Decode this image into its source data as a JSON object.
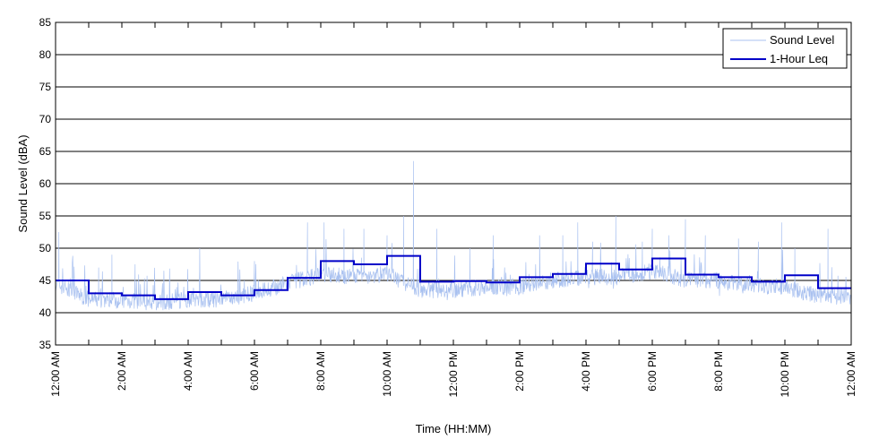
{
  "chart_data": {
    "type": "line",
    "title": "",
    "xlabel": "Time (HH:MM)",
    "ylabel": "Sound Level (dBA)",
    "ylim": [
      35,
      85
    ],
    "xlim": [
      0,
      24
    ],
    "yticks": [
      35,
      40,
      45,
      50,
      55,
      60,
      65,
      70,
      75,
      80,
      85
    ],
    "xtick_hours": [
      0,
      2,
      4,
      6,
      8,
      10,
      12,
      14,
      16,
      18,
      20,
      22,
      24
    ],
    "xtick_labels": [
      "12:00 AM",
      "2:00 AM",
      "4:00 AM",
      "6:00 AM",
      "8:00 AM",
      "10:00 AM",
      "12:00 PM",
      "2:00 PM",
      "4:00 PM",
      "6:00 PM",
      "8:00 PM",
      "10:00 PM",
      "12:00 AM"
    ],
    "grid": "horizontal",
    "legend_position": "top-right",
    "series": [
      {
        "name": "Sound Level",
        "color": "#a9c1f0",
        "style": "thin line",
        "approx_hourly_baseline": [
          44,
          41.5,
          41.5,
          41,
          41.5,
          41.5,
          42.5,
          44,
          45.5,
          45,
          45.5,
          43,
          43,
          43.5,
          43.5,
          44.5,
          45,
          45,
          46,
          44.5,
          44.5,
          43.5,
          43.5,
          42
        ],
        "peaks": [
          {
            "x": 0.1,
            "y": 52.5
          },
          {
            "x": 1.3,
            "y": 47
          },
          {
            "x": 1.7,
            "y": 49
          },
          {
            "x": 2.4,
            "y": 47.5
          },
          {
            "x": 4.35,
            "y": 50
          },
          {
            "x": 6.0,
            "y": 48
          },
          {
            "x": 7.6,
            "y": 54
          },
          {
            "x": 8.1,
            "y": 54
          },
          {
            "x": 8.7,
            "y": 53
          },
          {
            "x": 9.3,
            "y": 53
          },
          {
            "x": 10.0,
            "y": 52
          },
          {
            "x": 10.5,
            "y": 55
          },
          {
            "x": 10.8,
            "y": 63.5
          },
          {
            "x": 11.5,
            "y": 53
          },
          {
            "x": 12.5,
            "y": 50
          },
          {
            "x": 13.2,
            "y": 52
          },
          {
            "x": 14.6,
            "y": 52
          },
          {
            "x": 15.3,
            "y": 52
          },
          {
            "x": 15.75,
            "y": 54
          },
          {
            "x": 16.2,
            "y": 51
          },
          {
            "x": 16.9,
            "y": 55
          },
          {
            "x": 17.7,
            "y": 51
          },
          {
            "x": 18.0,
            "y": 53
          },
          {
            "x": 18.5,
            "y": 52
          },
          {
            "x": 19.0,
            "y": 54.5
          },
          {
            "x": 19.6,
            "y": 52
          },
          {
            "x": 20.6,
            "y": 51.5
          },
          {
            "x": 21.2,
            "y": 51
          },
          {
            "x": 21.9,
            "y": 54
          },
          {
            "x": 22.3,
            "y": 50
          },
          {
            "x": 23.3,
            "y": 53
          }
        ]
      },
      {
        "name": "1-Hour Leq",
        "color": "#0000c8",
        "style": "step",
        "hours": [
          0,
          1,
          2,
          3,
          4,
          5,
          6,
          7,
          8,
          9,
          10,
          11,
          12,
          13,
          14,
          15,
          16,
          17,
          18,
          19,
          20,
          21,
          22,
          23
        ],
        "values": [
          45.0,
          43.0,
          42.7,
          42.1,
          43.2,
          42.7,
          43.5,
          45.4,
          48.0,
          47.5,
          48.8,
          44.8,
          44.9,
          44.7,
          45.5,
          46.0,
          47.6,
          46.7,
          48.4,
          45.9,
          45.5,
          44.8,
          45.8,
          43.8
        ]
      }
    ]
  }
}
